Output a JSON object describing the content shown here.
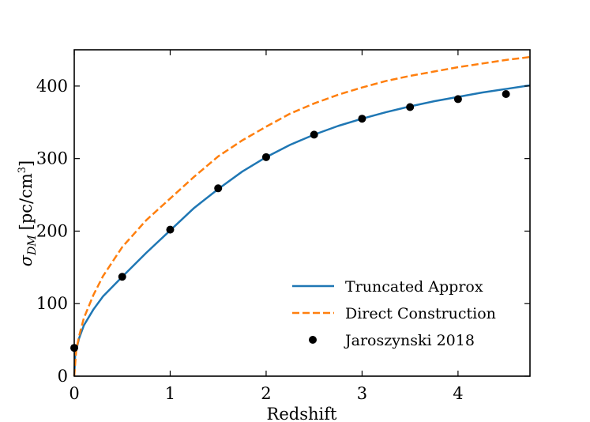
{
  "chart_data": {
    "type": "line",
    "title": "",
    "xlabel": "Redshift",
    "ylabel": "σ_DM [pc/cm³]",
    "ylabel_parts": {
      "sigma": "σ",
      "subscript": "DM",
      "units": "[pc/cm",
      "exp": "3",
      "close": "]"
    },
    "xlim": [
      0,
      4.75
    ],
    "ylim": [
      0,
      450
    ],
    "xticks": [
      0,
      1,
      2,
      3,
      4
    ],
    "yticks": [
      0,
      100,
      200,
      300,
      400
    ],
    "xtick_labels": [
      "0",
      "1",
      "2",
      "3",
      "4"
    ],
    "ytick_labels": [
      "0",
      "100",
      "200",
      "300",
      "400"
    ],
    "grid": false,
    "legend_position": "lower-right",
    "series": [
      {
        "name": "Truncated Approx",
        "kind": "line",
        "color": "#1f77b4",
        "style": "solid",
        "x": [
          0,
          0.01,
          0.05,
          0.1,
          0.2,
          0.3,
          0.5,
          0.75,
          1.0,
          1.25,
          1.5,
          1.75,
          2.0,
          2.25,
          2.5,
          2.75,
          3.0,
          3.25,
          3.5,
          3.75,
          4.0,
          4.25,
          4.5,
          4.75
        ],
        "y": [
          0,
          30,
          52,
          70,
          92,
          110,
          137,
          170,
          201,
          232,
          258,
          282,
          302,
          319,
          333,
          345,
          355,
          364,
          372,
          379,
          385,
          391,
          396,
          401
        ]
      },
      {
        "name": "Direct Construction",
        "kind": "line",
        "color": "#ff7f0e",
        "style": "dashed",
        "x": [
          0,
          0.02,
          0.05,
          0.1,
          0.2,
          0.3,
          0.5,
          0.75,
          1.0,
          1.25,
          1.5,
          1.75,
          2.0,
          2.25,
          2.5,
          2.75,
          3.0,
          3.25,
          3.5,
          3.75,
          4.0,
          4.25,
          4.5,
          4.75
        ],
        "y": [
          0,
          35,
          55,
          80,
          112,
          138,
          178,
          215,
          245,
          275,
          303,
          325,
          344,
          362,
          376,
          388,
          398,
          407,
          414,
          420,
          426,
          431,
          436,
          440
        ]
      },
      {
        "name": "Jaroszynski 2018",
        "kind": "scatter",
        "color": "#000000",
        "x": [
          0,
          0.5,
          1.0,
          1.5,
          2.0,
          2.5,
          3.0,
          3.5,
          4.0,
          4.5
        ],
        "y": [
          39,
          137,
          202,
          259,
          302,
          333,
          355,
          371,
          382,
          389
        ]
      }
    ]
  }
}
